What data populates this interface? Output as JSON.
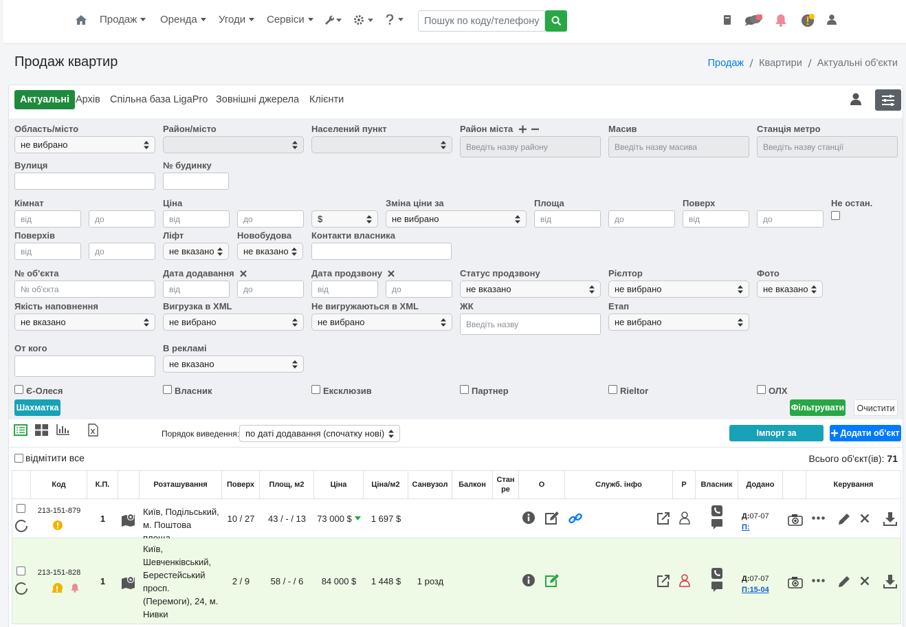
{
  "nav": {
    "menu": [
      "Продаж",
      "Оренда",
      "Угоди",
      "Сервіси"
    ],
    "search_placeholder": "Пошук по коду/телефону"
  },
  "header": {
    "title": "Продаж квартир",
    "breadcrumbs": [
      "Продаж",
      "Квартири",
      "Актуальні об'єкти"
    ]
  },
  "tabs": {
    "items": [
      "Актуальні",
      "Архів",
      "Спільна база LigaPro",
      "Зовнішні джерела",
      "Клієнти"
    ],
    "active": 0
  },
  "filters": {
    "fields": [
      {
        "label": "Область/місто",
        "inputs": [
          {
            "kind": "select",
            "value": "не вибрано"
          }
        ]
      },
      {
        "label": "Район/місто",
        "inputs": [
          {
            "kind": "select",
            "disabled": true
          }
        ]
      },
      {
        "label": "Населений пункт",
        "inputs": [
          {
            "kind": "select",
            "disabled": true
          }
        ]
      },
      {
        "label": "Район міста",
        "inputs": [
          {
            "kind": "text",
            "placeholder": "Введіть назву району",
            "disabled": true
          }
        ]
      },
      {
        "label": "Масив",
        "inputs": [
          {
            "kind": "text",
            "placeholder": "Введіть назву масива",
            "disabled": true
          }
        ]
      },
      {
        "label": "Станція метро",
        "inputs": [
          {
            "kind": "text",
            "placeholder": "Введіть назву станції",
            "disabled": true
          }
        ]
      },
      {
        "label": "Вулиця",
        "inputs": [
          {
            "kind": "text"
          }
        ]
      },
      {
        "label": "№ будинку",
        "inputs": [
          {
            "kind": "text"
          }
        ]
      },
      {
        "label": "Кімнат",
        "inputs": [
          {
            "kind": "text",
            "placeholder": "від"
          },
          {
            "kind": "text",
            "placeholder": "до"
          }
        ]
      },
      {
        "label": "Ціна",
        "inputs": [
          {
            "kind": "text",
            "placeholder": "від"
          },
          {
            "kind": "text",
            "placeholder": "до"
          },
          {
            "kind": "select",
            "value": "$"
          }
        ]
      },
      {
        "label": "Зміна ціни за",
        "inputs": [
          {
            "kind": "select",
            "value": "не вибрано"
          }
        ]
      },
      {
        "label": "Площа",
        "inputs": [
          {
            "kind": "text",
            "placeholder": "від"
          },
          {
            "kind": "text",
            "placeholder": "до"
          }
        ]
      },
      {
        "label": "Поверх",
        "inputs": [
          {
            "kind": "text",
            "placeholder": "від"
          },
          {
            "kind": "text",
            "placeholder": "до"
          }
        ]
      },
      {
        "label": "Не остан.",
        "inputs": [
          {
            "kind": "checkbox"
          }
        ]
      },
      {
        "label": "Поверхів",
        "inputs": [
          {
            "kind": "text",
            "placeholder": "від"
          },
          {
            "kind": "text",
            "placeholder": "до"
          }
        ]
      },
      {
        "label": "Ліфт",
        "inputs": [
          {
            "kind": "select",
            "value": "не вказано"
          }
        ]
      },
      {
        "label": "Новобудова",
        "inputs": [
          {
            "kind": "select",
            "value": "не вказано"
          }
        ]
      },
      {
        "label": "Контакти власника",
        "inputs": [
          {
            "kind": "text"
          }
        ]
      },
      {
        "label": "№ об'єкта",
        "inputs": [
          {
            "kind": "text",
            "placeholder": "№ об'єкта"
          }
        ]
      },
      {
        "label": "Дата додавання",
        "inputs": [
          {
            "kind": "text",
            "placeholder": "від"
          },
          {
            "kind": "text",
            "placeholder": "до"
          }
        ]
      },
      {
        "label": "Дата продзвону",
        "inputs": [
          {
            "kind": "text",
            "placeholder": "від"
          },
          {
            "kind": "text",
            "placeholder": "до"
          }
        ]
      },
      {
        "label": "Статус продзвону",
        "inputs": [
          {
            "kind": "select",
            "value": "не вказано"
          }
        ]
      },
      {
        "label": "Рієлтор",
        "inputs": [
          {
            "kind": "select",
            "value": "не вибрано"
          }
        ]
      },
      {
        "label": "Фото",
        "inputs": [
          {
            "kind": "select",
            "value": "не вказано"
          }
        ]
      },
      {
        "label": "Якість наповнення",
        "inputs": [
          {
            "kind": "select",
            "value": "не вказано"
          }
        ]
      },
      {
        "label": "Вигрузка в XML",
        "inputs": [
          {
            "kind": "select",
            "value": "не вибрано"
          }
        ]
      },
      {
        "label": "Не вигружаються в XML",
        "inputs": [
          {
            "kind": "select",
            "value": "не вибрано"
          }
        ]
      },
      {
        "label": "ЖК",
        "inputs": [
          {
            "kind": "text",
            "placeholder": "Введіть назву"
          }
        ]
      },
      {
        "label": "Етап",
        "inputs": [
          {
            "kind": "select",
            "value": "не вибрано"
          }
        ]
      },
      {
        "label": "От кого",
        "inputs": [
          {
            "kind": "text"
          }
        ]
      },
      {
        "label": "В рекламі",
        "inputs": [
          {
            "kind": "select",
            "value": "не вказано"
          }
        ]
      }
    ],
    "checkboxes": [
      "Є-Олеся",
      "Власник",
      "Ексклюзив",
      "Партнер",
      "Rieltor",
      "ОЛХ"
    ],
    "buttons": {
      "chess": "Шахматка",
      "filter": "Фільтрувати",
      "clear": "Очистити"
    }
  },
  "toolbar": {
    "order_label": "Порядок виведення:",
    "order_value": "по даті додавання (спочатку нові)",
    "import": "Імпорт за посиланням",
    "add": "Додати об'єкт"
  },
  "list": {
    "select_all": "відмітити все",
    "total_label": "Всього об'єкт(ів):",
    "total": 71
  },
  "table": {
    "columns": {
      "code": "Код",
      "kp": "К.П.",
      "location": "Розташування",
      "floor": "Поверх",
      "area": "Площ, м2",
      "price": "Ціна",
      "price_m2": "Ціна/м2",
      "bathroom": "Санвузол",
      "balcony": "Балкон",
      "state": "Стан ре",
      "o": "О",
      "service": "Служб. інфо",
      "r": "Р",
      "owner": "Власник",
      "added": "Додано",
      "manage": "Керування"
    },
    "rows": [
      {
        "code": "213-151-879",
        "kp": "1",
        "location": "Київ, Подільський, м. Поштова площа",
        "floor": "10 / 27",
        "area": "43 / - / 13",
        "price": "73 000 $",
        "price_m2": "1 697 $",
        "added_label": "Д:",
        "added": "07-07",
        "called": "П:"
      },
      {
        "code": "213-151-828",
        "kp": "1",
        "location": "Київ, Шевченківський, Берестейський просп. (Перемоги), 24, м. Нивки",
        "floor": "2 / 9",
        "area": "58 / - / 6",
        "price": "84 000 $",
        "price_m2": "1 448 $",
        "bathroom": "1 розд",
        "added_label": "Д:",
        "added": "07-07",
        "called": "П:15-04"
      }
    ]
  }
}
